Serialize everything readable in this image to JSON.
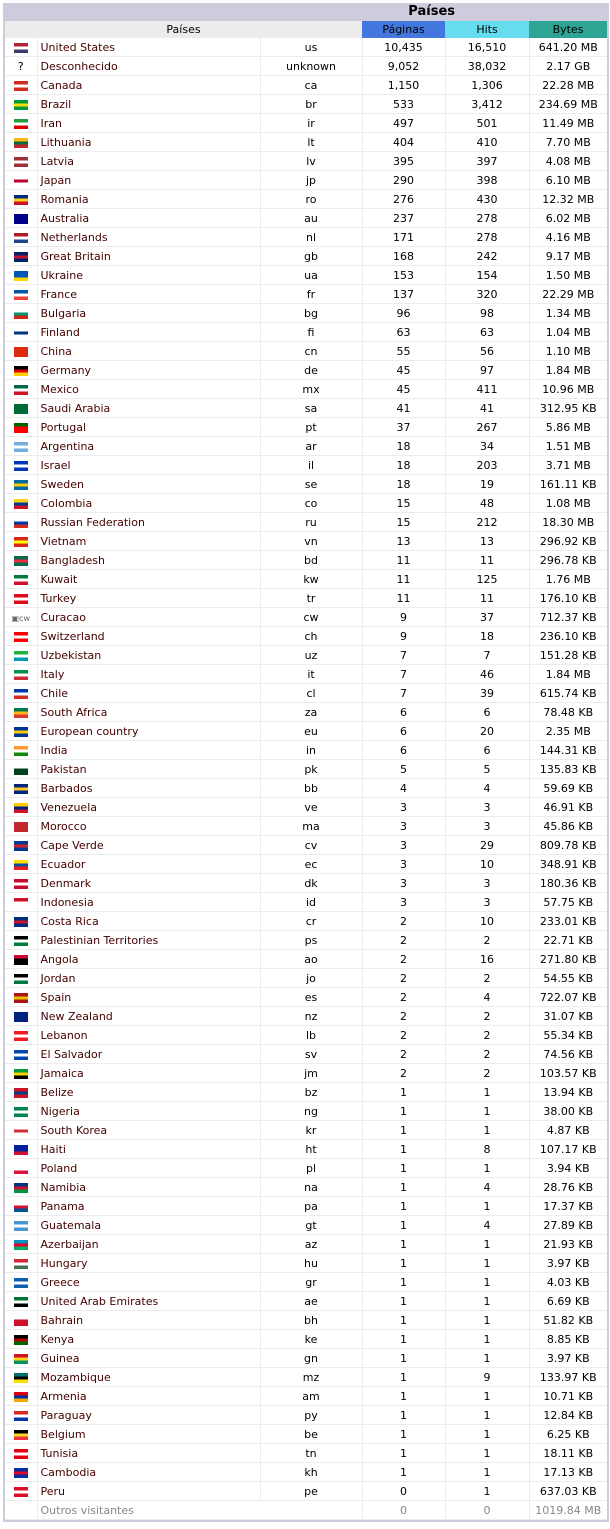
{
  "title": "Países",
  "headers": {
    "country": "Países",
    "pages": "Páginas",
    "hits": "Hits",
    "bytes": "Bytes"
  },
  "header_colors": {
    "pages": "#4477dd",
    "hits": "#66ddee",
    "bytes": "#2ea495"
  },
  "rows": [
    [
      "United States",
      "us",
      "10,435",
      "16,510",
      "641.20 MB",
      [
        "#b22234",
        "#fff",
        "#3c3b6e"
      ]
    ],
    [
      "Desconhecido",
      "unknown",
      "9,052",
      "38,032",
      "2.17 GB",
      []
    ],
    [
      "Canada",
      "ca",
      "1,150",
      "1,306",
      "22.28 MB",
      [
        "#d52b1e",
        "#fff",
        "#d52b1e"
      ]
    ],
    [
      "Brazil",
      "br",
      "533",
      "3,412",
      "234.69 MB",
      [
        "#009c3b",
        "#ffdf00",
        "#009c3b"
      ]
    ],
    [
      "Iran",
      "ir",
      "497",
      "501",
      "11.49 MB",
      [
        "#239f40",
        "#fff",
        "#da0000"
      ]
    ],
    [
      "Lithuania",
      "lt",
      "404",
      "410",
      "7.70 MB",
      [
        "#fdb913",
        "#006a44",
        "#c1272d"
      ]
    ],
    [
      "Latvia",
      "lv",
      "395",
      "397",
      "4.08 MB",
      [
        "#9e3039",
        "#fff",
        "#9e3039"
      ]
    ],
    [
      "Japan",
      "jp",
      "290",
      "398",
      "6.10 MB",
      [
        "#fff",
        "#bc002d",
        "#fff"
      ]
    ],
    [
      "Romania",
      "ro",
      "276",
      "430",
      "12.32 MB",
      [
        "#002b7f",
        "#fcd116",
        "#ce1126"
      ]
    ],
    [
      "Australia",
      "au",
      "237",
      "278",
      "6.02 MB",
      [
        "#00008b",
        "#00008b",
        "#00008b"
      ]
    ],
    [
      "Netherlands",
      "nl",
      "171",
      "278",
      "4.16 MB",
      [
        "#ae1c28",
        "#fff",
        "#21468b"
      ]
    ],
    [
      "Great Britain",
      "gb",
      "168",
      "242",
      "9.17 MB",
      [
        "#012169",
        "#c8102e",
        "#012169"
      ]
    ],
    [
      "Ukraine",
      "ua",
      "153",
      "154",
      "1.50 MB",
      [
        "#0057b7",
        "#0057b7",
        "#ffd700"
      ]
    ],
    [
      "France",
      "fr",
      "137",
      "320",
      "22.29 MB",
      [
        "#0055a4",
        "#fff",
        "#ef4135"
      ]
    ],
    [
      "Bulgaria",
      "bg",
      "96",
      "98",
      "1.34 MB",
      [
        "#fff",
        "#00966e",
        "#d62612"
      ]
    ],
    [
      "Finland",
      "fi",
      "63",
      "63",
      "1.04 MB",
      [
        "#fff",
        "#003580",
        "#fff"
      ]
    ],
    [
      "China",
      "cn",
      "55",
      "56",
      "1.10 MB",
      [
        "#de2910",
        "#de2910",
        "#de2910"
      ]
    ],
    [
      "Germany",
      "de",
      "45",
      "97",
      "1.84 MB",
      [
        "#000",
        "#dd0000",
        "#ffce00"
      ]
    ],
    [
      "Mexico",
      "mx",
      "45",
      "411",
      "10.96 MB",
      [
        "#006847",
        "#fff",
        "#ce1126"
      ]
    ],
    [
      "Saudi Arabia",
      "sa",
      "41",
      "41",
      "312.95 KB",
      [
        "#006c35",
        "#006c35",
        "#006c35"
      ]
    ],
    [
      "Portugal",
      "pt",
      "37",
      "267",
      "5.86 MB",
      [
        "#006600",
        "#ff0000",
        "#ff0000"
      ]
    ],
    [
      "Argentina",
      "ar",
      "18",
      "34",
      "1.51 MB",
      [
        "#74acdf",
        "#fff",
        "#74acdf"
      ]
    ],
    [
      "Israel",
      "il",
      "18",
      "203",
      "3.71 MB",
      [
        "#0038b8",
        "#fff",
        "#0038b8"
      ]
    ],
    [
      "Sweden",
      "se",
      "18",
      "19",
      "161.11 KB",
      [
        "#006aa7",
        "#fecc00",
        "#006aa7"
      ]
    ],
    [
      "Colombia",
      "co",
      "15",
      "48",
      "1.08 MB",
      [
        "#fcd116",
        "#003893",
        "#ce1126"
      ]
    ],
    [
      "Russian Federation",
      "ru",
      "15",
      "212",
      "18.30 MB",
      [
        "#fff",
        "#0039a6",
        "#d52b1e"
      ]
    ],
    [
      "Vietnam",
      "vn",
      "13",
      "13",
      "296.92 KB",
      [
        "#da251d",
        "#ffff00",
        "#da251d"
      ]
    ],
    [
      "Bangladesh",
      "bd",
      "11",
      "11",
      "296.78 KB",
      [
        "#006a4e",
        "#f42a41",
        "#006a4e"
      ]
    ],
    [
      "Kuwait",
      "kw",
      "11",
      "125",
      "1.76 MB",
      [
        "#007a3d",
        "#fff",
        "#ce1126"
      ]
    ],
    [
      "Turkey",
      "tr",
      "11",
      "11",
      "176.10 KB",
      [
        "#e30a17",
        "#fff",
        "#e30a17"
      ]
    ],
    [
      "Curacao",
      "cw",
      "9",
      "37",
      "712.37 KB",
      [
        "broken"
      ]
    ],
    [
      "Switzerland",
      "ch",
      "9",
      "18",
      "236.10 KB",
      [
        "#ff0000",
        "#fff",
        "#ff0000"
      ]
    ],
    [
      "Uzbekistan",
      "uz",
      "7",
      "7",
      "151.28 KB",
      [
        "#1eb53a",
        "#fff",
        "#0099b5"
      ]
    ],
    [
      "Italy",
      "it",
      "7",
      "46",
      "1.84 MB",
      [
        "#009246",
        "#fff",
        "#ce2b37"
      ]
    ],
    [
      "Chile",
      "cl",
      "7",
      "39",
      "615.74 KB",
      [
        "#0039a6",
        "#fff",
        "#d52b1e"
      ]
    ],
    [
      "South Africa",
      "za",
      "6",
      "6",
      "78.48 KB",
      [
        "#007a4d",
        "#ffb612",
        "#de3831"
      ]
    ],
    [
      "European country",
      "eu",
      "6",
      "20",
      "2.35 MB",
      [
        "#003399",
        "#ffcc00",
        "#003399"
      ]
    ],
    [
      "India",
      "in",
      "6",
      "6",
      "144.31 KB",
      [
        "#ff9933",
        "#fff",
        "#138808"
      ]
    ],
    [
      "Pakistan",
      "pk",
      "5",
      "5",
      "135.83 KB",
      [
        "#fff",
        "#01411c",
        "#01411c"
      ]
    ],
    [
      "Barbados",
      "bb",
      "4",
      "4",
      "59.69 KB",
      [
        "#00267f",
        "#ffc726",
        "#00267f"
      ]
    ],
    [
      "Venezuela",
      "ve",
      "3",
      "3",
      "46.91 KB",
      [
        "#ffcc00",
        "#00247d",
        "#cf142b"
      ]
    ],
    [
      "Morocco",
      "ma",
      "3",
      "3",
      "45.86 KB",
      [
        "#c1272d",
        "#c1272d",
        "#c1272d"
      ]
    ],
    [
      "Cape Verde",
      "cv",
      "3",
      "29",
      "809.78 KB",
      [
        "#003893",
        "#cf2027",
        "#003893"
      ]
    ],
    [
      "Ecuador",
      "ec",
      "3",
      "10",
      "348.91 KB",
      [
        "#ffdd00",
        "#034ea2",
        "#ed1c24"
      ]
    ],
    [
      "Denmark",
      "dk",
      "3",
      "3",
      "180.36 KB",
      [
        "#c60c30",
        "#fff",
        "#c60c30"
      ]
    ],
    [
      "Indonesia",
      "id",
      "3",
      "3",
      "57.75 KB",
      [
        "#ce1126",
        "#fff",
        "#fff"
      ]
    ],
    [
      "Costa Rica",
      "cr",
      "2",
      "10",
      "233.01 KB",
      [
        "#002b7f",
        "#ce1126",
        "#002b7f"
      ]
    ],
    [
      "Palestinian Territories",
      "ps",
      "2",
      "2",
      "22.71 KB",
      [
        "#000",
        "#fff",
        "#007a3d"
      ]
    ],
    [
      "Angola",
      "ao",
      "2",
      "16",
      "271.80 KB",
      [
        "#cc092f",
        "#000",
        "#000"
      ]
    ],
    [
      "Jordan",
      "jo",
      "2",
      "2",
      "54.55 KB",
      [
        "#000",
        "#fff",
        "#007a3d"
      ]
    ],
    [
      "Spain",
      "es",
      "2",
      "4",
      "722.07 KB",
      [
        "#aa151b",
        "#f1bf00",
        "#aa151b"
      ]
    ],
    [
      "New Zealand",
      "nz",
      "2",
      "2",
      "31.07 KB",
      [
        "#00247d",
        "#00247d",
        "#00247d"
      ]
    ],
    [
      "Lebanon",
      "lb",
      "2",
      "2",
      "55.34 KB",
      [
        "#ed1c24",
        "#fff",
        "#ed1c24"
      ]
    ],
    [
      "El Salvador",
      "sv",
      "2",
      "2",
      "74.56 KB",
      [
        "#0047ab",
        "#fff",
        "#0047ab"
      ]
    ],
    [
      "Jamaica",
      "jm",
      "2",
      "2",
      "103.57 KB",
      [
        "#009b3a",
        "#fed100",
        "#000"
      ]
    ],
    [
      "Belize",
      "bz",
      "1",
      "1",
      "13.94 KB",
      [
        "#ce1126",
        "#003f87",
        "#ce1126"
      ]
    ],
    [
      "Nigeria",
      "ng",
      "1",
      "1",
      "38.00 KB",
      [
        "#008751",
        "#fff",
        "#008751"
      ]
    ],
    [
      "South Korea",
      "kr",
      "1",
      "1",
      "4.87 KB",
      [
        "#fff",
        "#cd2e3a",
        "#fff"
      ]
    ],
    [
      "Haiti",
      "ht",
      "1",
      "8",
      "107.17 KB",
      [
        "#00209f",
        "#00209f",
        "#d21034"
      ]
    ],
    [
      "Poland",
      "pl",
      "1",
      "1",
      "3.94 KB",
      [
        "#fff",
        "#fff",
        "#dc143c"
      ]
    ],
    [
      "Namibia",
      "na",
      "1",
      "4",
      "28.76 KB",
      [
        "#003580",
        "#d21034",
        "#009543"
      ]
    ],
    [
      "Panama",
      "pa",
      "1",
      "1",
      "17.37 KB",
      [
        "#fff",
        "#d21034",
        "#005293"
      ]
    ],
    [
      "Guatemala",
      "gt",
      "1",
      "4",
      "27.89 KB",
      [
        "#4997d0",
        "#fff",
        "#4997d0"
      ]
    ],
    [
      "Azerbaijan",
      "az",
      "1",
      "1",
      "21.93 KB",
      [
        "#0092bc",
        "#e4002b",
        "#00af66"
      ]
    ],
    [
      "Hungary",
      "hu",
      "1",
      "1",
      "3.97 KB",
      [
        "#ce2939",
        "#fff",
        "#477050"
      ]
    ],
    [
      "Greece",
      "gr",
      "1",
      "1",
      "4.03 KB",
      [
        "#0d5eaf",
        "#fff",
        "#0d5eaf"
      ]
    ],
    [
      "United Arab Emirates",
      "ae",
      "1",
      "1",
      "6.69 KB",
      [
        "#00732f",
        "#fff",
        "#000"
      ]
    ],
    [
      "Bahrain",
      "bh",
      "1",
      "1",
      "51.82 KB",
      [
        "#fff",
        "#ce1126",
        "#ce1126"
      ]
    ],
    [
      "Kenya",
      "ke",
      "1",
      "1",
      "8.85 KB",
      [
        "#000",
        "#bb0000",
        "#006600"
      ]
    ],
    [
      "Guinea",
      "gn",
      "1",
      "1",
      "3.97 KB",
      [
        "#ce1126",
        "#fcd116",
        "#009460"
      ]
    ],
    [
      "Mozambique",
      "mz",
      "1",
      "9",
      "133.97 KB",
      [
        "#007168",
        "#000",
        "#fce100"
      ]
    ],
    [
      "Armenia",
      "am",
      "1",
      "1",
      "10.71 KB",
      [
        "#d90012",
        "#0033a0",
        "#f2a800"
      ]
    ],
    [
      "Paraguay",
      "py",
      "1",
      "1",
      "12.84 KB",
      [
        "#d52b1e",
        "#fff",
        "#0038a8"
      ]
    ],
    [
      "Belgium",
      "be",
      "1",
      "1",
      "6.25 KB",
      [
        "#000",
        "#fdda24",
        "#ef3340"
      ]
    ],
    [
      "Tunisia",
      "tn",
      "1",
      "1",
      "18.11 KB",
      [
        "#e70013",
        "#fff",
        "#e70013"
      ]
    ],
    [
      "Cambodia",
      "kh",
      "1",
      "1",
      "17.13 KB",
      [
        "#032ea1",
        "#e00025",
        "#032ea1"
      ]
    ],
    [
      "Peru",
      "pe",
      "0",
      "1",
      "637.03 KB",
      [
        "#d91023",
        "#fff",
        "#d91023"
      ]
    ]
  ],
  "other": {
    "label": "Outros visitantes",
    "pages": "0",
    "hits": "0",
    "bytes": "1019.84 MB"
  }
}
